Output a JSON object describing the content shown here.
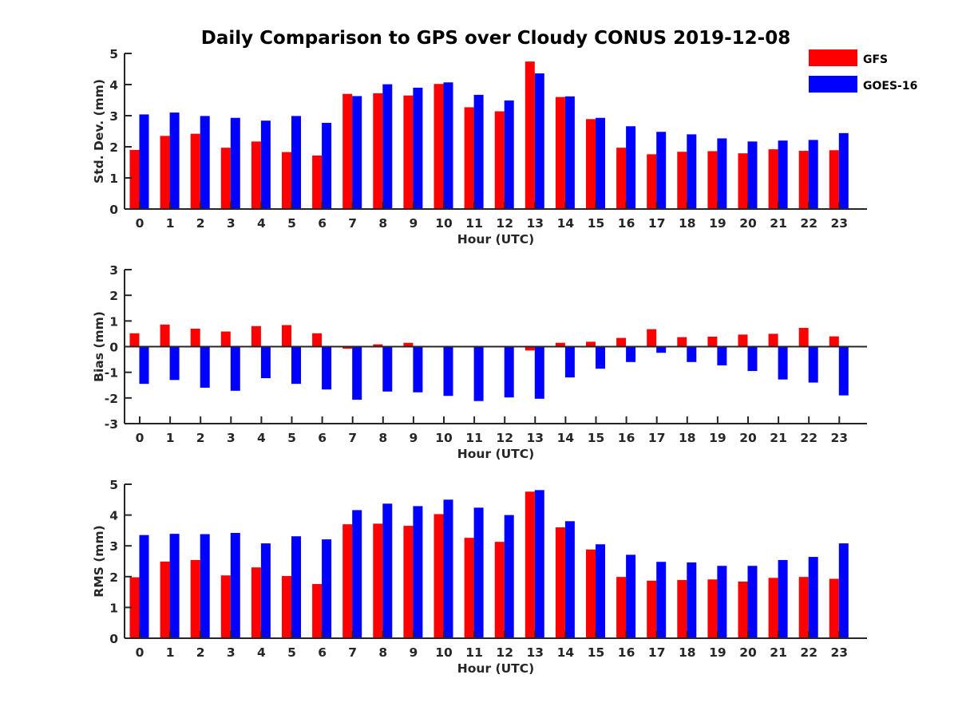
{
  "title": "Daily Comparison to GPS over Cloudy CONUS 2019-12-08",
  "legend": {
    "placement": "top-right",
    "entries": [
      {
        "name": "GFS",
        "color": "#ff0000"
      },
      {
        "name": "GOES-16",
        "color": "#0000ff"
      }
    ]
  },
  "chart_data": [
    {
      "type": "bar",
      "title": "Daily Comparison to GPS over Cloudy CONUS 2019-12-08",
      "xlabel": "Hour (UTC)",
      "ylabel": "Std. Dev. (mm)",
      "ylim": [
        0,
        5
      ],
      "yticks": [
        "0",
        "1",
        "2",
        "3",
        "4",
        "5"
      ],
      "categories": [
        "0",
        "1",
        "2",
        "3",
        "4",
        "5",
        "6",
        "7",
        "8",
        "9",
        "10",
        "11",
        "12",
        "13",
        "14",
        "15",
        "16",
        "17",
        "18",
        "19",
        "20",
        "21",
        "22",
        "23"
      ],
      "series": [
        {
          "name": "GFS",
          "color": "#ff0000",
          "values": [
            1.9,
            2.35,
            2.42,
            1.97,
            2.17,
            1.83,
            1.72,
            3.7,
            3.72,
            3.65,
            4.02,
            3.27,
            3.14,
            4.74,
            3.6,
            2.89,
            1.97,
            1.76,
            1.84,
            1.86,
            1.79,
            1.92,
            1.87,
            1.89
          ]
        },
        {
          "name": "GOES-16",
          "color": "#0000ff",
          "values": [
            3.04,
            3.1,
            2.99,
            2.93,
            2.84,
            2.99,
            2.77,
            3.63,
            4.01,
            3.9,
            4.07,
            3.67,
            3.49,
            4.36,
            3.62,
            2.93,
            2.66,
            2.48,
            2.4,
            2.27,
            2.17,
            2.2,
            2.22,
            2.44
          ]
        }
      ]
    },
    {
      "type": "bar",
      "title": "",
      "xlabel": "Hour (UTC)",
      "ylabel": "Bias (mm)",
      "ylim": [
        -3,
        3
      ],
      "yticks": [
        "-3",
        "-2",
        "-1",
        "0",
        "1",
        "2",
        "3"
      ],
      "categories": [
        "0",
        "1",
        "2",
        "3",
        "4",
        "5",
        "6",
        "7",
        "8",
        "9",
        "10",
        "11",
        "12",
        "13",
        "14",
        "15",
        "16",
        "17",
        "18",
        "19",
        "20",
        "21",
        "22",
        "23"
      ],
      "series": [
        {
          "name": "GFS",
          "color": "#ff0000",
          "values": [
            0.52,
            0.86,
            0.7,
            0.59,
            0.8,
            0.84,
            0.52,
            -0.08,
            0.09,
            0.15,
            0.0,
            0.0,
            0.03,
            -0.15,
            0.15,
            0.19,
            0.34,
            0.68,
            0.37,
            0.39,
            0.47,
            0.5,
            0.73,
            0.4
          ]
        },
        {
          "name": "GOES-16",
          "color": "#0000ff",
          "values": [
            -1.45,
            -1.3,
            -1.6,
            -1.72,
            -1.23,
            -1.45,
            -1.67,
            -2.07,
            -1.75,
            -1.78,
            -1.92,
            -2.12,
            -1.98,
            -2.03,
            -1.2,
            -0.86,
            -0.6,
            -0.24,
            -0.6,
            -0.73,
            -0.95,
            -1.28,
            -1.4,
            -1.9
          ]
        }
      ]
    },
    {
      "type": "bar",
      "title": "",
      "xlabel": "Hour (UTC)",
      "ylabel": "RMS (mm)",
      "ylim": [
        0,
        5
      ],
      "yticks": [
        "0",
        "1",
        "2",
        "3",
        "4",
        "5"
      ],
      "categories": [
        "0",
        "1",
        "2",
        "3",
        "4",
        "5",
        "6",
        "7",
        "8",
        "9",
        "10",
        "11",
        "12",
        "13",
        "14",
        "15",
        "16",
        "17",
        "18",
        "19",
        "20",
        "21",
        "22",
        "23"
      ],
      "series": [
        {
          "name": "GFS",
          "color": "#ff0000",
          "values": [
            1.98,
            2.49,
            2.54,
            2.04,
            2.3,
            2.02,
            1.76,
            3.7,
            3.72,
            3.65,
            4.03,
            3.26,
            3.13,
            4.76,
            3.6,
            2.88,
            1.99,
            1.87,
            1.89,
            1.91,
            1.84,
            1.96,
            1.99,
            1.93
          ]
        },
        {
          "name": "GOES-16",
          "color": "#0000ff",
          "values": [
            3.35,
            3.39,
            3.38,
            3.42,
            3.08,
            3.31,
            3.21,
            4.16,
            4.37,
            4.29,
            4.5,
            4.24,
            4.0,
            4.81,
            3.8,
            3.05,
            2.71,
            2.48,
            2.46,
            2.35,
            2.35,
            2.54,
            2.64,
            3.08
          ]
        }
      ]
    }
  ]
}
